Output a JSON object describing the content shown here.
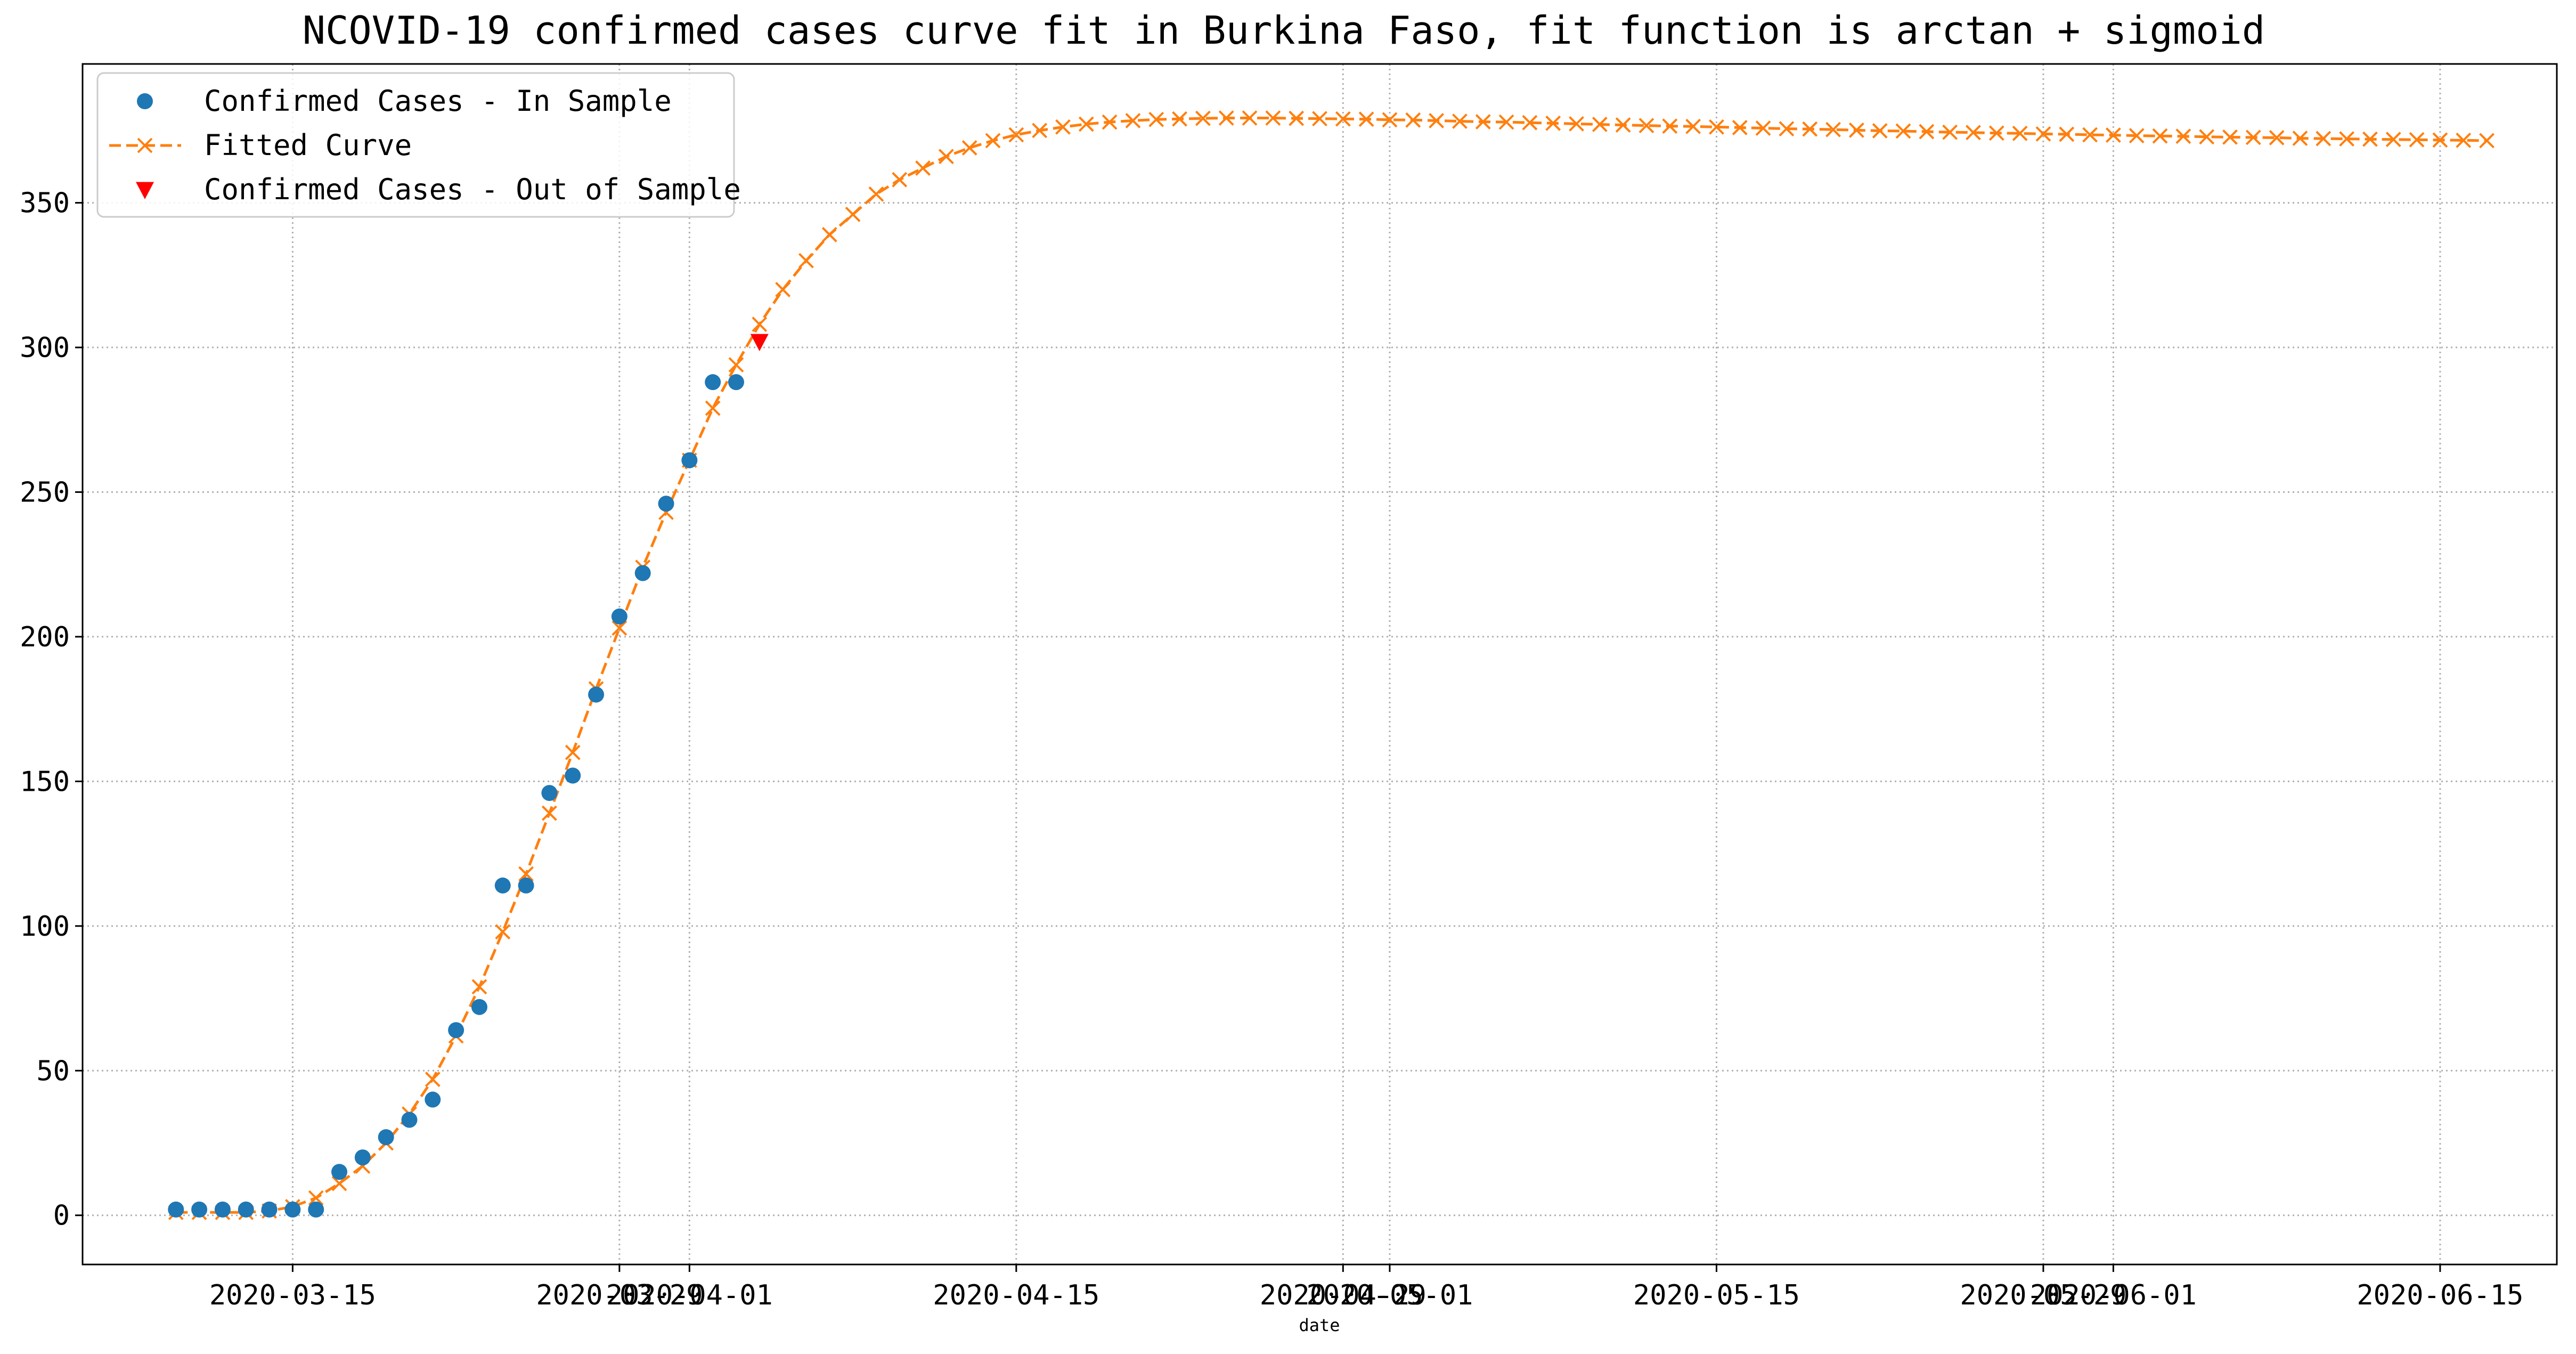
{
  "chart_data": {
    "type": "line",
    "title": "NCOVID-19 confirmed cases curve fit in Burkina Faso, fit function is arctan + sigmoid",
    "xlabel": "date",
    "ylabel": "",
    "x_axis_type": "date",
    "xlim": [
      "2020-03-06",
      "2020-06-20"
    ],
    "ylim": [
      -17,
      398
    ],
    "x_ticks": [
      {
        "date": "2020-03-15",
        "label": "2020-03-15"
      },
      {
        "date": "2020-03-29",
        "label": "2020-03-29"
      },
      {
        "date": "2020-04-01",
        "label": "2020-04-01"
      },
      {
        "date": "2020-04-15",
        "label": "2020-04-15"
      },
      {
        "date": "2020-04-29",
        "label": "2020-04-29"
      },
      {
        "date": "2020-05-01",
        "label": "2020-05-01"
      },
      {
        "date": "2020-05-15",
        "label": "2020-05-15"
      },
      {
        "date": "2020-05-29",
        "label": "2020-05-29"
      },
      {
        "date": "2020-06-01",
        "label": "2020-06-01"
      },
      {
        "date": "2020-06-15",
        "label": "2020-06-15"
      }
    ],
    "y_ticks": [
      {
        "value": 0,
        "label": "0"
      },
      {
        "value": 50,
        "label": "50"
      },
      {
        "value": 100,
        "label": "100"
      },
      {
        "value": 150,
        "label": "150"
      },
      {
        "value": 200,
        "label": "200"
      },
      {
        "value": 250,
        "label": "250"
      },
      {
        "value": 300,
        "label": "300"
      },
      {
        "value": 350,
        "label": "350"
      }
    ],
    "grid": true,
    "legend_position": "top-left",
    "colors": {
      "in_sample": "#1f77b4",
      "fitted": "#ff7f0e",
      "out_of_sample": "#ff0000",
      "grid": "#b0b0b0"
    },
    "series": [
      {
        "name": "Confirmed Cases - In Sample",
        "marker": "circle",
        "line": "none",
        "points": [
          {
            "x": "2020-03-10",
            "y": 2
          },
          {
            "x": "2020-03-11",
            "y": 2
          },
          {
            "x": "2020-03-12",
            "y": 2
          },
          {
            "x": "2020-03-13",
            "y": 2
          },
          {
            "x": "2020-03-14",
            "y": 2
          },
          {
            "x": "2020-03-15",
            "y": 2
          },
          {
            "x": "2020-03-16",
            "y": 2
          },
          {
            "x": "2020-03-17",
            "y": 15
          },
          {
            "x": "2020-03-18",
            "y": 20
          },
          {
            "x": "2020-03-19",
            "y": 27
          },
          {
            "x": "2020-03-20",
            "y": 33
          },
          {
            "x": "2020-03-21",
            "y": 40
          },
          {
            "x": "2020-03-22",
            "y": 64
          },
          {
            "x": "2020-03-23",
            "y": 72
          },
          {
            "x": "2020-03-24",
            "y": 114
          },
          {
            "x": "2020-03-25",
            "y": 114
          },
          {
            "x": "2020-03-26",
            "y": 146
          },
          {
            "x": "2020-03-27",
            "y": 152
          },
          {
            "x": "2020-03-28",
            "y": 180
          },
          {
            "x": "2020-03-29",
            "y": 207
          },
          {
            "x": "2020-03-30",
            "y": 222
          },
          {
            "x": "2020-03-31",
            "y": 246
          },
          {
            "x": "2020-04-01",
            "y": 261
          },
          {
            "x": "2020-04-02",
            "y": 288
          },
          {
            "x": "2020-04-03",
            "y": 288
          }
        ]
      },
      {
        "name": "Fitted Curve",
        "marker": "x",
        "line": "dashed",
        "points": [
          {
            "x": "2020-03-10",
            "y": 1
          },
          {
            "x": "2020-03-11",
            "y": 1
          },
          {
            "x": "2020-03-12",
            "y": 1
          },
          {
            "x": "2020-03-13",
            "y": 1
          },
          {
            "x": "2020-03-14",
            "y": 1.5
          },
          {
            "x": "2020-03-15",
            "y": 3
          },
          {
            "x": "2020-03-16",
            "y": 6
          },
          {
            "x": "2020-03-17",
            "y": 11
          },
          {
            "x": "2020-03-18",
            "y": 17
          },
          {
            "x": "2020-03-19",
            "y": 25
          },
          {
            "x": "2020-03-20",
            "y": 35
          },
          {
            "x": "2020-03-21",
            "y": 47
          },
          {
            "x": "2020-03-22",
            "y": 62
          },
          {
            "x": "2020-03-23",
            "y": 79
          },
          {
            "x": "2020-03-24",
            "y": 98
          },
          {
            "x": "2020-03-25",
            "y": 118
          },
          {
            "x": "2020-03-26",
            "y": 139
          },
          {
            "x": "2020-03-27",
            "y": 160
          },
          {
            "x": "2020-03-28",
            "y": 182
          },
          {
            "x": "2020-03-29",
            "y": 203
          },
          {
            "x": "2020-03-30",
            "y": 224
          },
          {
            "x": "2020-03-31",
            "y": 243
          },
          {
            "x": "2020-04-01",
            "y": 261
          },
          {
            "x": "2020-04-02",
            "y": 279
          },
          {
            "x": "2020-04-03",
            "y": 294
          },
          {
            "x": "2020-04-04",
            "y": 308
          },
          {
            "x": "2020-04-05",
            "y": 320
          },
          {
            "x": "2020-04-06",
            "y": 330
          },
          {
            "x": "2020-04-07",
            "y": 339
          },
          {
            "x": "2020-04-08",
            "y": 346
          },
          {
            "x": "2020-04-09",
            "y": 353
          },
          {
            "x": "2020-04-10",
            "y": 358
          },
          {
            "x": "2020-04-11",
            "y": 362
          },
          {
            "x": "2020-04-12",
            "y": 366
          },
          {
            "x": "2020-04-13",
            "y": 369
          },
          {
            "x": "2020-04-14",
            "y": 371.5
          },
          {
            "x": "2020-04-15",
            "y": 373.5
          },
          {
            "x": "2020-04-16",
            "y": 375
          },
          {
            "x": "2020-04-17",
            "y": 376.2
          },
          {
            "x": "2020-04-18",
            "y": 377.2
          },
          {
            "x": "2020-04-19",
            "y": 377.9
          },
          {
            "x": "2020-04-20",
            "y": 378.4
          },
          {
            "x": "2020-04-21",
            "y": 378.8
          },
          {
            "x": "2020-04-22",
            "y": 379
          },
          {
            "x": "2020-04-23",
            "y": 379.2
          },
          {
            "x": "2020-04-24",
            "y": 379.3
          },
          {
            "x": "2020-04-25",
            "y": 379.3
          },
          {
            "x": "2020-04-26",
            "y": 379.3
          },
          {
            "x": "2020-04-27",
            "y": 379.2
          },
          {
            "x": "2020-04-28",
            "y": 379.1
          },
          {
            "x": "2020-04-29",
            "y": 379
          },
          {
            "x": "2020-04-30",
            "y": 378.9
          },
          {
            "x": "2020-05-01",
            "y": 378.7
          },
          {
            "x": "2020-05-02",
            "y": 378.6
          },
          {
            "x": "2020-05-03",
            "y": 378.4
          },
          {
            "x": "2020-05-04",
            "y": 378.2
          },
          {
            "x": "2020-05-05",
            "y": 378
          },
          {
            "x": "2020-05-06",
            "y": 377.9
          },
          {
            "x": "2020-05-07",
            "y": 377.7
          },
          {
            "x": "2020-05-08",
            "y": 377.5
          },
          {
            "x": "2020-05-09",
            "y": 377.3
          },
          {
            "x": "2020-05-10",
            "y": 377.1
          },
          {
            "x": "2020-05-11",
            "y": 376.9
          },
          {
            "x": "2020-05-12",
            "y": 376.7
          },
          {
            "x": "2020-05-13",
            "y": 376.5
          },
          {
            "x": "2020-05-14",
            "y": 376.4
          },
          {
            "x": "2020-05-15",
            "y": 376.2
          },
          {
            "x": "2020-05-16",
            "y": 376
          },
          {
            "x": "2020-05-17",
            "y": 375.8
          },
          {
            "x": "2020-05-18",
            "y": 375.6
          },
          {
            "x": "2020-05-19",
            "y": 375.5
          },
          {
            "x": "2020-05-20",
            "y": 375.3
          },
          {
            "x": "2020-05-21",
            "y": 375.1
          },
          {
            "x": "2020-05-22",
            "y": 374.9
          },
          {
            "x": "2020-05-23",
            "y": 374.8
          },
          {
            "x": "2020-05-24",
            "y": 374.6
          },
          {
            "x": "2020-05-25",
            "y": 374.4
          },
          {
            "x": "2020-05-26",
            "y": 374.3
          },
          {
            "x": "2020-05-27",
            "y": 374.1
          },
          {
            "x": "2020-05-28",
            "y": 374
          },
          {
            "x": "2020-05-29",
            "y": 373.8
          },
          {
            "x": "2020-05-30",
            "y": 373.7
          },
          {
            "x": "2020-05-31",
            "y": 373.5
          },
          {
            "x": "2020-06-01",
            "y": 373.4
          },
          {
            "x": "2020-06-02",
            "y": 373.2
          },
          {
            "x": "2020-06-03",
            "y": 373.1
          },
          {
            "x": "2020-06-04",
            "y": 373
          },
          {
            "x": "2020-06-05",
            "y": 372.8
          },
          {
            "x": "2020-06-06",
            "y": 372.7
          },
          {
            "x": "2020-06-07",
            "y": 372.6
          },
          {
            "x": "2020-06-08",
            "y": 372.5
          },
          {
            "x": "2020-06-09",
            "y": 372.3
          },
          {
            "x": "2020-06-10",
            "y": 372.2
          },
          {
            "x": "2020-06-11",
            "y": 372.1
          },
          {
            "x": "2020-06-12",
            "y": 372
          },
          {
            "x": "2020-06-13",
            "y": 371.9
          },
          {
            "x": "2020-06-14",
            "y": 371.8
          },
          {
            "x": "2020-06-15",
            "y": 371.7
          },
          {
            "x": "2020-06-16",
            "y": 371.6
          },
          {
            "x": "2020-06-17",
            "y": 371.5
          }
        ]
      },
      {
        "name": "Confirmed Cases - Out of Sample",
        "marker": "triangle-down",
        "line": "none",
        "points": [
          {
            "x": "2020-04-04",
            "y": 302
          }
        ]
      }
    ]
  }
}
